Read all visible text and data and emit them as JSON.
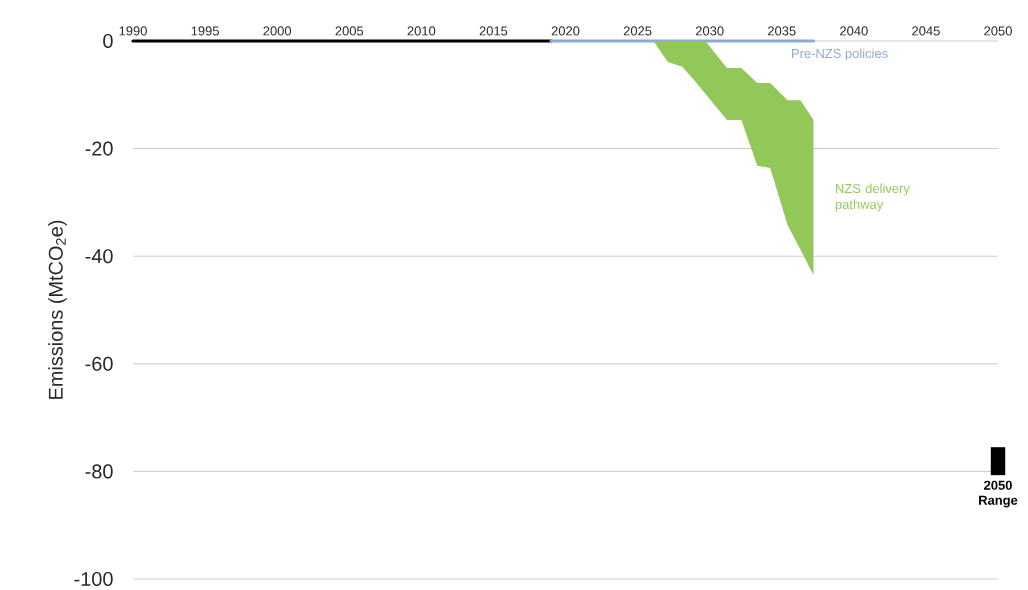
{
  "chart_data": {
    "type": "line",
    "ylabel": "Emissions (MtCO$_{2}$e)",
    "xlim": [
      1990,
      2050
    ],
    "ylim": [
      -100,
      0
    ],
    "xticks": [
      1990,
      1995,
      2000,
      2005,
      2010,
      2015,
      2020,
      2025,
      2030,
      2035,
      2040,
      2045,
      2050
    ],
    "yticks": [
      -100,
      -80,
      -60,
      -40,
      -20,
      0
    ],
    "grid": "y",
    "annotations": [
      {
        "text": "2050 Range",
        "x": 2050,
        "y": -80.7
      }
    ],
    "series": [
      {
        "color": "#000000",
        "x": [
          1990,
          2019
        ],
        "values": [
          0,
          0
        ]
      },
      {
        "name": "Pre-NZS policies",
        "color": "#8eaad4",
        "x": [
          2019,
          2037.2
        ],
        "values": [
          0,
          0
        ]
      },
      {
        "type": "area",
        "name": "NZS delivery pathway",
        "color": "#92c85a",
        "x": [
          2026.1,
          2027.1,
          2028.1,
          2028.9,
          2029.7,
          2031.2,
          2032.2,
          2033.3,
          2034.2,
          2035.4,
          2036.3,
          2037.2
        ],
        "values": [
          null,
          null,
          null,
          null,
          null,
          null,
          null,
          null,
          null,
          null,
          null,
          null
        ],
        "upper": [
          0,
          0,
          0,
          0,
          0,
          -5,
          -5,
          -7.8,
          -7.8,
          -11,
          -11,
          -14.7
        ],
        "lower": [
          0,
          -3.9,
          -4.8,
          -7.2,
          -9.8,
          -14.7,
          -14.7,
          -23.2,
          -23.6,
          -34.2,
          -38.8,
          -43.5
        ]
      },
      {
        "type": "bar",
        "color": "#000000",
        "x": [
          2050
        ],
        "values": [
          5.2
        ],
        "base": [
          -80.7
        ]
      }
    ]
  }
}
